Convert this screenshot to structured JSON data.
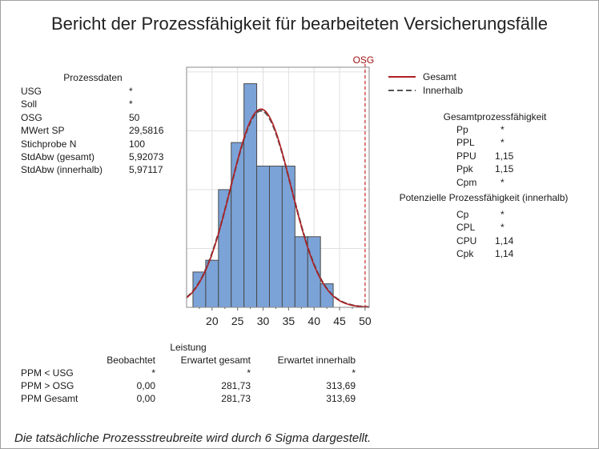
{
  "title": "Bericht der Prozessfähigkeit für bearbeiteten Versicherungsfälle",
  "process_data": {
    "header": "Prozessdaten",
    "rows": [
      {
        "label": "USG",
        "value": "*"
      },
      {
        "label": "Soll",
        "value": "*"
      },
      {
        "label": "OSG",
        "value": "50"
      },
      {
        "label": "MWert SP",
        "value": "29,5816"
      },
      {
        "label": "Stichprobe N",
        "value": "100"
      },
      {
        "label": "StdAbw (gesamt)",
        "value": "5,92073"
      },
      {
        "label": "StdAbw (innerhalb)",
        "value": "5,97117"
      }
    ]
  },
  "legend": [
    {
      "label": "Gesamt",
      "style": "solid",
      "color": "#b01f24"
    },
    {
      "label": "Innerhalb",
      "style": "dashed",
      "color": "#555555"
    }
  ],
  "overall_capability": {
    "header": "Gesamtprozessfähigkeit",
    "rows": [
      {
        "label": "Pp",
        "value": "*"
      },
      {
        "label": "PPL",
        "value": "*"
      },
      {
        "label": "PPU",
        "value": "1,15"
      },
      {
        "label": "Ppk",
        "value": "1,15"
      },
      {
        "label": "Cpm",
        "value": "*"
      }
    ]
  },
  "potential_capability": {
    "header": "Potenzielle Prozessfähigkeit (innerhalb)",
    "rows": [
      {
        "label": "Cp",
        "value": "*"
      },
      {
        "label": "CPL",
        "value": "*"
      },
      {
        "label": "CPU",
        "value": "1,14"
      },
      {
        "label": "Cpk",
        "value": "1,14"
      }
    ]
  },
  "performance": {
    "header": "Leistung",
    "columns": [
      "Beobachtet",
      "Erwartet gesamt",
      "Erwartet innerhalb"
    ],
    "rows": [
      {
        "label": "PPM < USG",
        "values": [
          "*",
          "*",
          "*"
        ]
      },
      {
        "label": "PPM > OSG",
        "values": [
          "0,00",
          "281,73",
          "313,69"
        ]
      },
      {
        "label": "PPM Gesamt",
        "values": [
          "0,00",
          "281,73",
          "313,69"
        ]
      }
    ]
  },
  "footer": "Die tatsächliche Prozessstreubreite wird durch 6 Sigma dargestellt.",
  "chart_data": {
    "type": "bar",
    "subtype": "histogram with fitted normal curves",
    "bin_edges": [
      16.25,
      18.75,
      21.25,
      23.75,
      26.25,
      28.75,
      31.25,
      33.75,
      36.25,
      38.75,
      41.25,
      43.75
    ],
    "counts": [
      3,
      4,
      10,
      14,
      19,
      12,
      12,
      12,
      6,
      6,
      2
    ],
    "xlim": [
      15,
      50.8
    ],
    "ylim": [
      0,
      20.4
    ],
    "x_ticks": [
      "20",
      "25",
      "30",
      "35",
      "40",
      "45",
      "50"
    ],
    "y_gridlines": [
      5,
      10,
      15,
      20
    ],
    "grid": true,
    "bar_color": "#7ba3d8",
    "spec_limits": [
      {
        "label": "OSG",
        "value": 50,
        "color": "#c00000"
      }
    ],
    "curves": [
      {
        "name": "Gesamt",
        "mean": 29.5816,
        "sd": 5.92073,
        "color": "#b01f24",
        "style": "solid"
      },
      {
        "name": "Innerhalb",
        "mean": 29.5816,
        "sd": 5.97117,
        "color": "#555555",
        "style": "dashed"
      }
    ],
    "sample_size": 100
  }
}
